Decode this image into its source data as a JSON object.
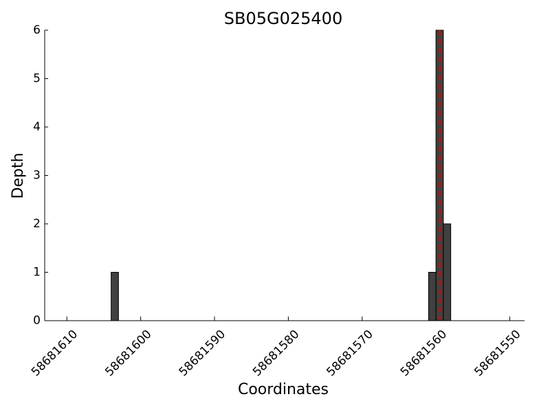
{
  "chart_data": {
    "type": "bar",
    "title": "SB05G025400",
    "x_label": "Coordinates",
    "y_label": "Depth",
    "x": [
      58681603.5,
      58681560.5,
      58681559.5,
      58681558.5
    ],
    "values": [
      1,
      1,
      6,
      2
    ],
    "color": "#404040",
    "xlim": [
      58681613,
      58681548
    ],
    "xticks": [
      58681610,
      58681600,
      58681590,
      58681580,
      58681570,
      58681560,
      58681550
    ],
    "ylim": [
      0,
      6
    ],
    "yticks": [
      0,
      1,
      2,
      3,
      4,
      5,
      6
    ],
    "reference_line": {
      "x": 58681559.5,
      "color": "#e00000"
    }
  }
}
